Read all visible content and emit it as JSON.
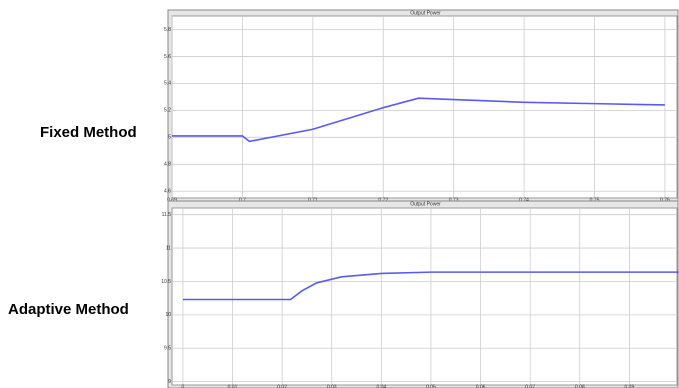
{
  "chart_data": [
    {
      "type": "line",
      "label": "Fixed Method",
      "title": "Output Power",
      "x": [
        0.69,
        0.7,
        0.701,
        0.71,
        0.72,
        0.725,
        0.73,
        0.74,
        0.75,
        0.76
      ],
      "values": [
        5.01,
        5.01,
        4.97,
        5.06,
        5.22,
        5.29,
        5.28,
        5.26,
        5.25,
        5.24
      ],
      "color": "#5a5af0",
      "xlim": [
        0.69,
        0.762
      ],
      "xticks": [
        0.69,
        0.7,
        0.71,
        0.72,
        0.73,
        0.74,
        0.75,
        0.76
      ],
      "ylim": [
        4.55,
        5.9
      ],
      "yticks": [
        4.6,
        4.8,
        5,
        5.2,
        5.4,
        5.6,
        5.8
      ],
      "grid": true
    },
    {
      "type": "line",
      "label": "Adaptive Method",
      "title": "Output Power",
      "x": [
        0,
        0.0217,
        0.024,
        0.027,
        0.032,
        0.04,
        0.05,
        0.1
      ],
      "values": [
        10.23,
        10.23,
        10.36,
        10.48,
        10.57,
        10.62,
        10.64,
        10.64
      ],
      "color": "#5a5af0",
      "xlim": [
        -0.0022,
        0.1
      ],
      "xticks": [
        0,
        0.01,
        0.02,
        0.03,
        0.04,
        0.05,
        0.06,
        0.07,
        0.08,
        0.09
      ],
      "ylim": [
        8.95,
        11.6
      ],
      "yticks": [
        9,
        9.5,
        10,
        10.5,
        11,
        11.5
      ],
      "grid": true
    }
  ]
}
